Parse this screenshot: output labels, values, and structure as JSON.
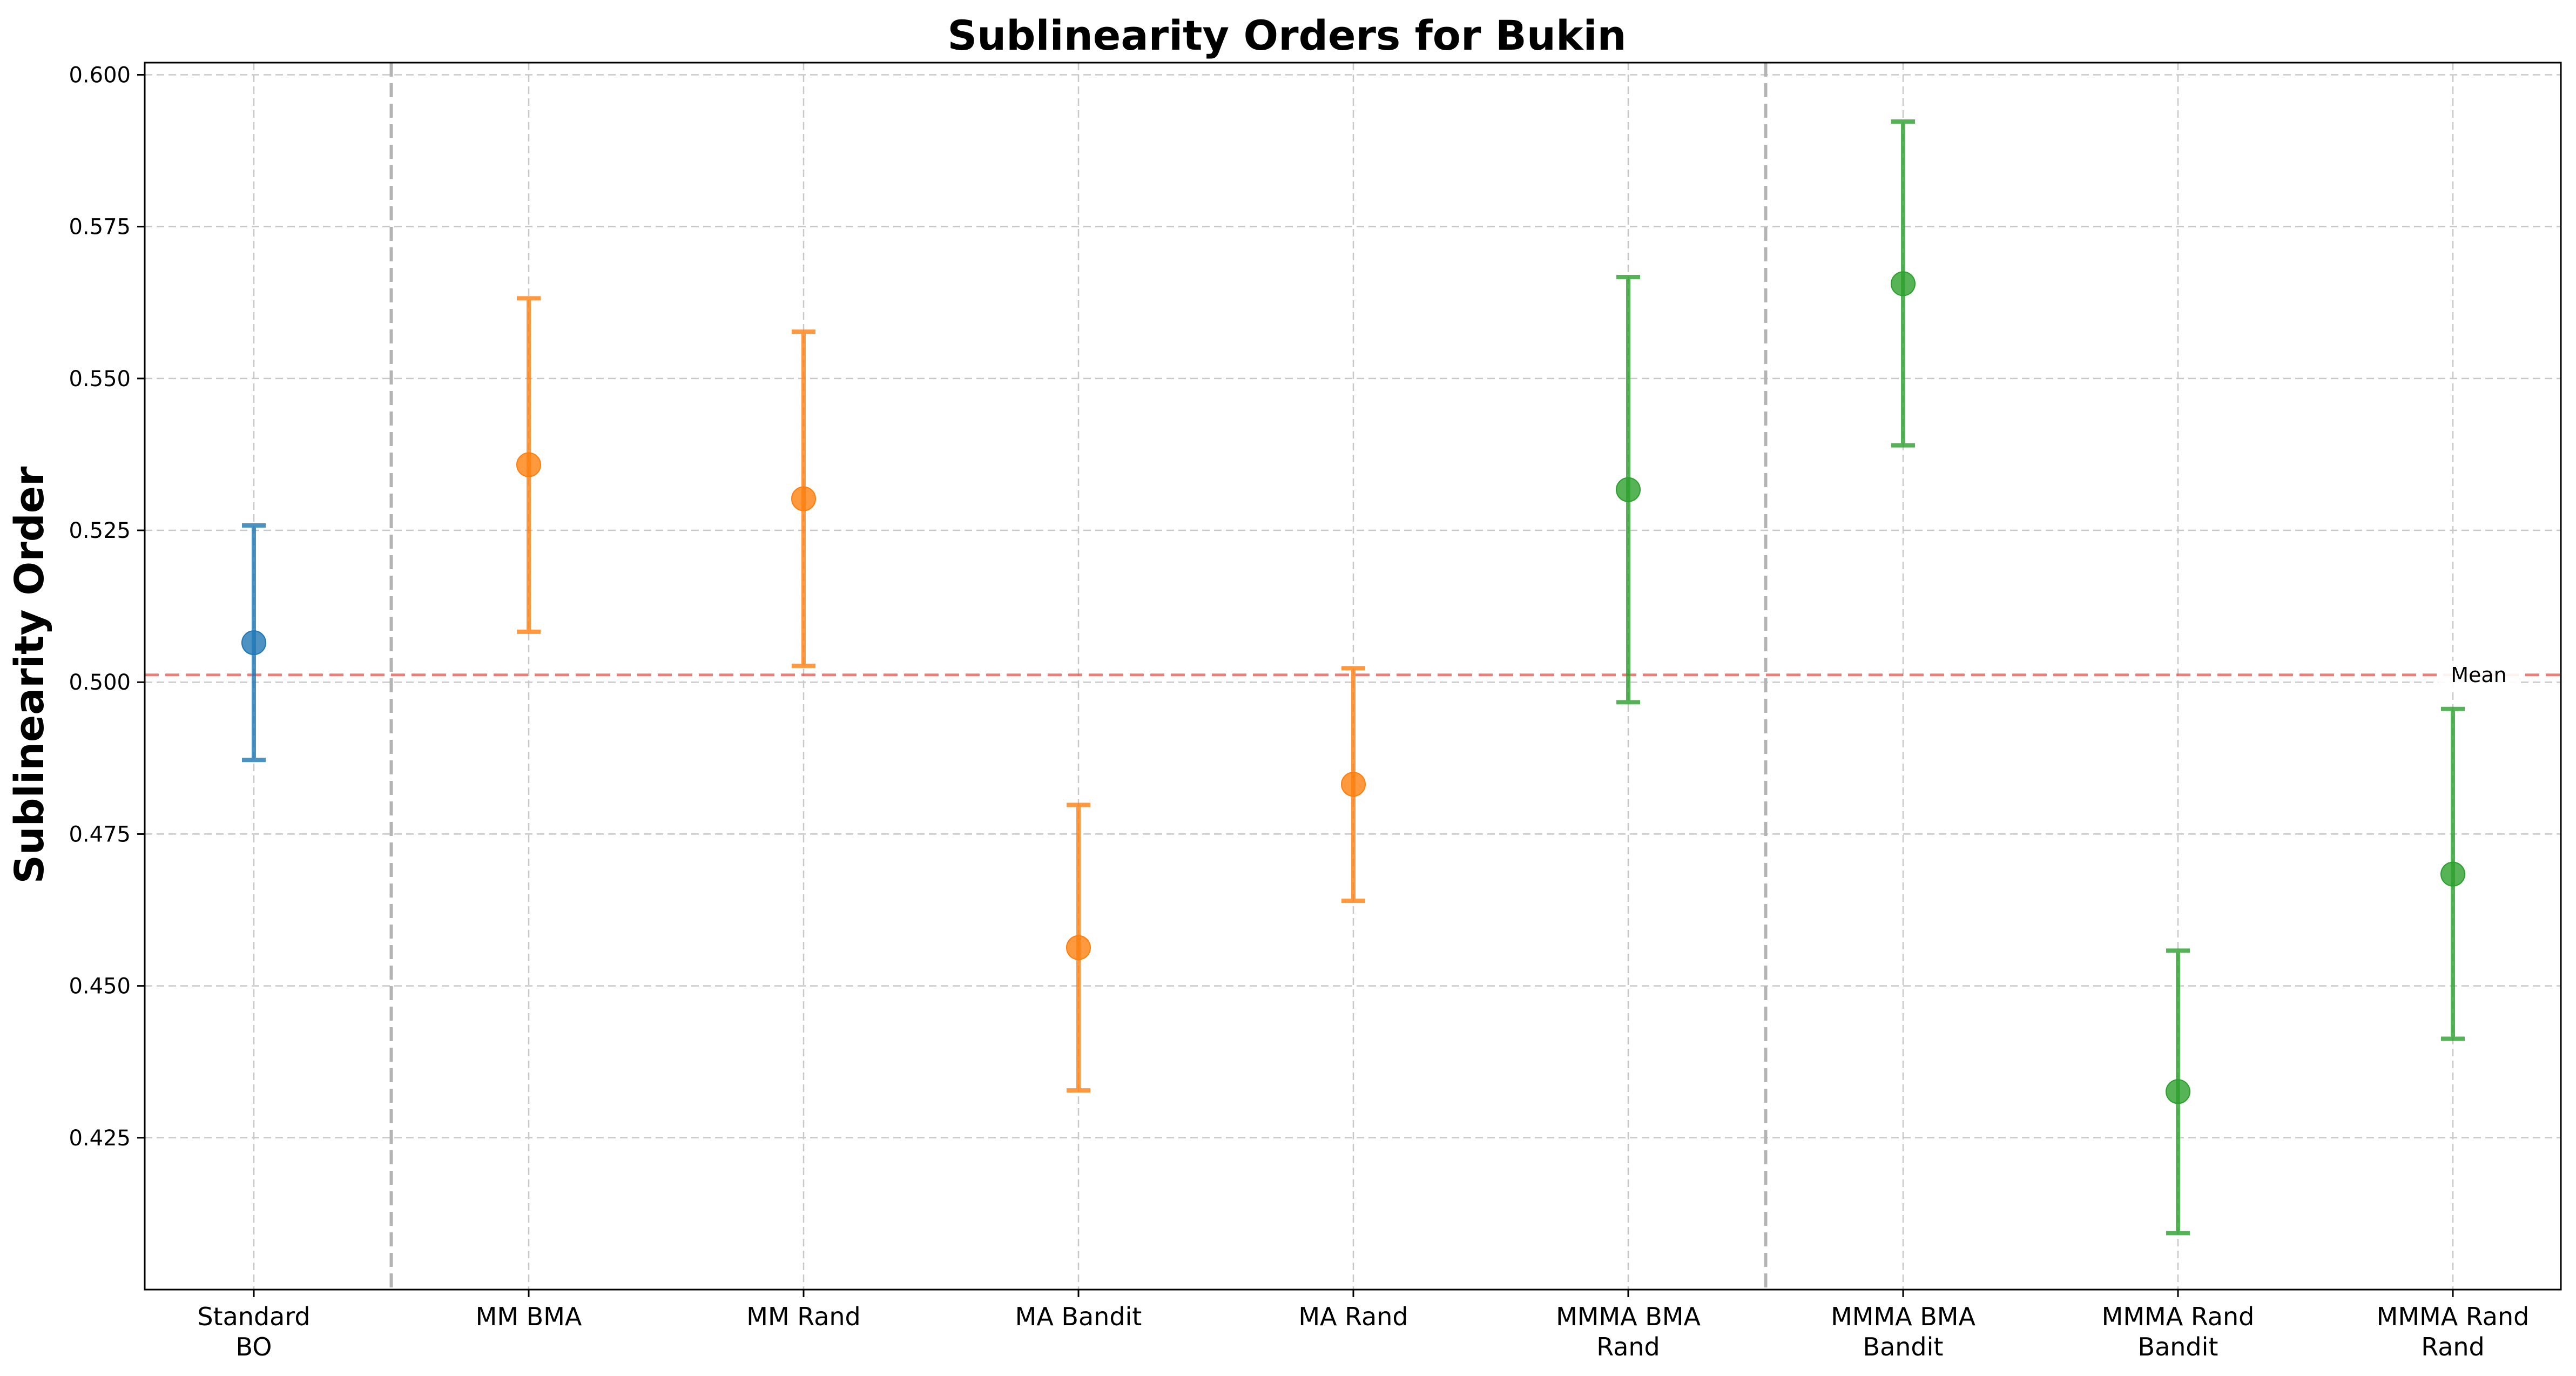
{
  "chart_data": {
    "type": "scatter",
    "title": "Sublinearity Orders for Bukin",
    "xlabel": "",
    "ylabel": "Sublinearity Order",
    "categories": [
      [
        "Standard",
        "BO"
      ],
      [
        "MM BMA"
      ],
      [
        "MM Rand"
      ],
      [
        "MA Bandit"
      ],
      [
        "MA Rand"
      ],
      [
        "MMMA BMA",
        "Rand"
      ],
      [
        "MMMA BMA",
        "Bandit"
      ],
      [
        "MMMA Rand",
        "Bandit"
      ],
      [
        "MMMA Rand",
        "Rand"
      ]
    ],
    "points": [
      {
        "value": 0.5065,
        "lower": 0.4872,
        "upper": 0.5258,
        "color": "#1f77b4"
      },
      {
        "value": 0.5358,
        "lower": 0.5083,
        "upper": 0.5632,
        "color": "#ff7f0e"
      },
      {
        "value": 0.5302,
        "lower": 0.5027,
        "upper": 0.5577,
        "color": "#ff7f0e"
      },
      {
        "value": 0.4563,
        "lower": 0.4328,
        "upper": 0.4798,
        "color": "#ff7f0e"
      },
      {
        "value": 0.4832,
        "lower": 0.464,
        "upper": 0.5023,
        "color": "#ff7f0e"
      },
      {
        "value": 0.5317,
        "lower": 0.4967,
        "upper": 0.5667,
        "color": "#2ca02c"
      },
      {
        "value": 0.5656,
        "lower": 0.539,
        "upper": 0.5923,
        "color": "#2ca02c"
      },
      {
        "value": 0.4326,
        "lower": 0.4093,
        "upper": 0.4558,
        "color": "#2ca02c"
      },
      {
        "value": 0.4684,
        "lower": 0.4413,
        "upper": 0.4956,
        "color": "#2ca02c"
      }
    ],
    "mean": {
      "value": 0.5012,
      "label": "Mean",
      "color": "#e8463c"
    },
    "separators_after_index": [
      0,
      5
    ],
    "ylim": [
      0.4,
      0.602
    ],
    "yticks": [
      0.425,
      0.45,
      0.475,
      0.5,
      0.525,
      0.55,
      0.575,
      0.6
    ],
    "yticks_text": [
      "0.425",
      "0.450",
      "0.475",
      "0.500",
      "0.525",
      "0.550",
      "0.575",
      "0.600"
    ],
    "grid": true
  }
}
